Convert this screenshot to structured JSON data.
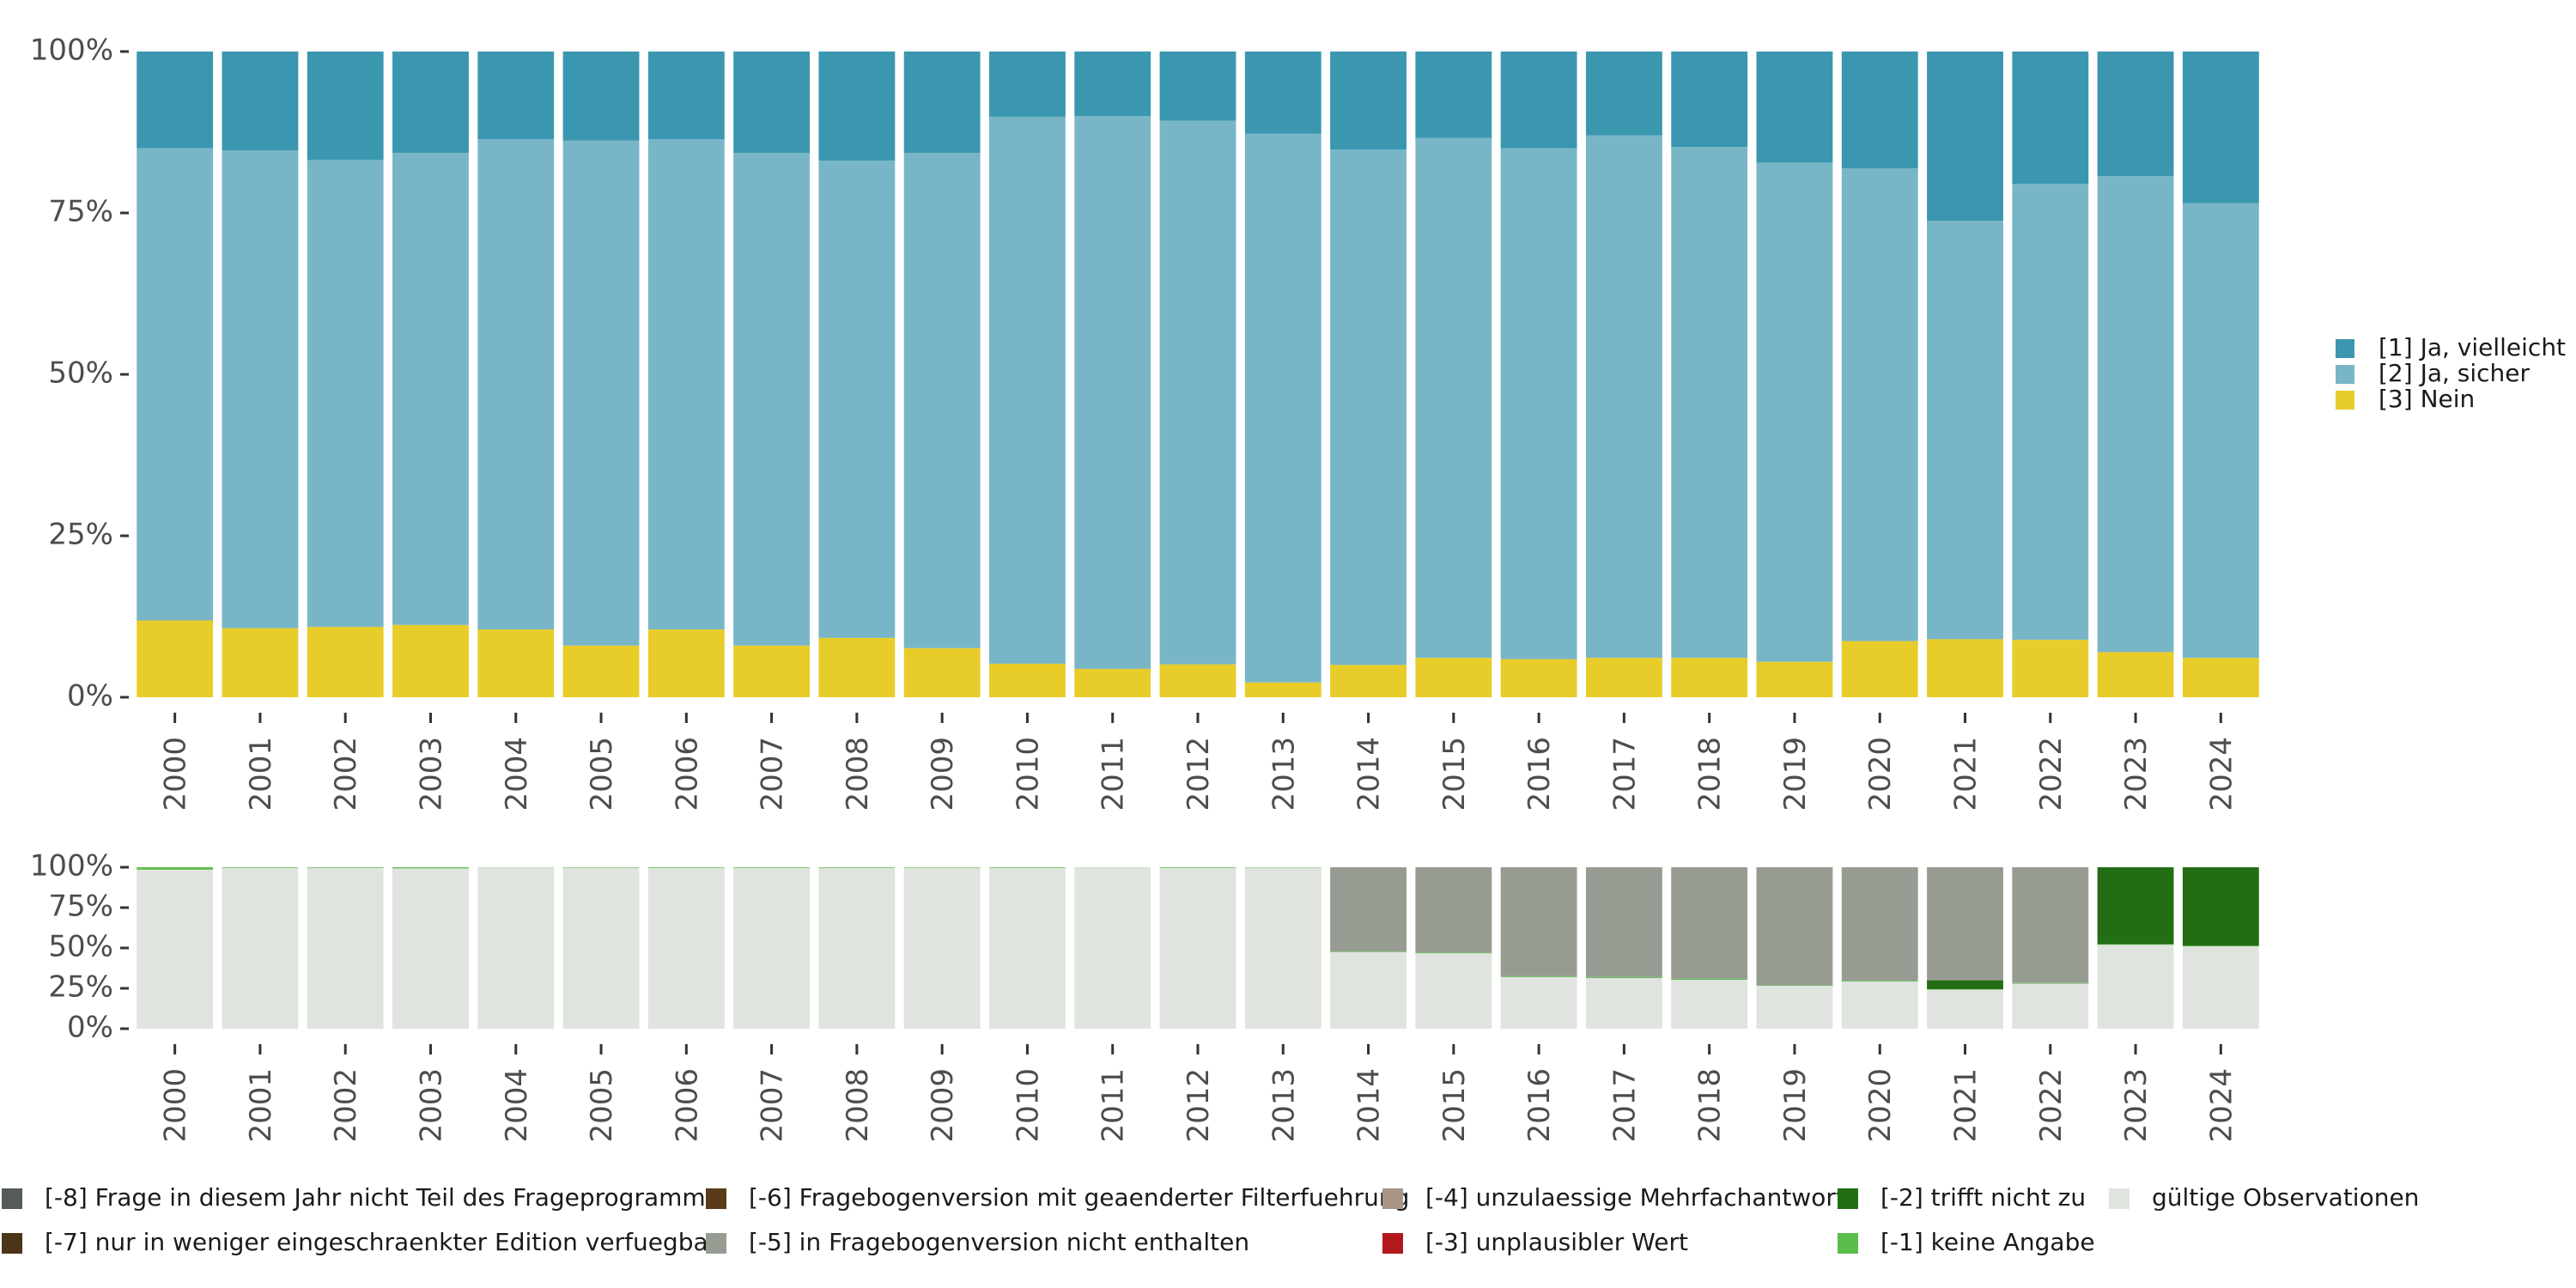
{
  "chart_data": [
    {
      "type": "bar",
      "stacked": true,
      "title": "",
      "xlabel": "",
      "ylabel": "",
      "ylim": [
        0,
        100
      ],
      "yticks": [
        "0%",
        "25%",
        "50%",
        "75%",
        "100%"
      ],
      "categories": [
        "2000",
        "2001",
        "2002",
        "2003",
        "2004",
        "2005",
        "2006",
        "2007",
        "2008",
        "2009",
        "2010",
        "2011",
        "2012",
        "2013",
        "2014",
        "2015",
        "2016",
        "2017",
        "2018",
        "2019",
        "2020",
        "2021",
        "2022",
        "2023",
        "2024"
      ],
      "legend_position": "right",
      "series": [
        {
          "name": "[3] Nein",
          "color": "#e8cc2a",
          "values": [
            11.9,
            10.7,
            10.9,
            11.2,
            10.5,
            8.0,
            10.5,
            8.0,
            9.2,
            7.6,
            5.2,
            4.4,
            5.1,
            2.3,
            5.0,
            6.1,
            5.9,
            6.1,
            6.1,
            5.5,
            8.7,
            9.0,
            8.9,
            7.0,
            6.1
          ]
        },
        {
          "name": "[2] Ja, sicher",
          "color": "#78b6c7",
          "values": [
            73.1,
            74.0,
            72.3,
            73.1,
            75.9,
            78.2,
            75.9,
            76.3,
            73.9,
            76.7,
            84.7,
            85.6,
            84.2,
            85.0,
            79.8,
            80.5,
            79.1,
            80.9,
            79.1,
            77.3,
            73.2,
            64.8,
            70.6,
            73.7,
            70.4
          ]
        },
        {
          "name": "[1] Ja, vielleicht",
          "color": "#3b97b0",
          "values": [
            15.0,
            15.3,
            16.8,
            15.7,
            13.6,
            13.8,
            13.6,
            15.7,
            16.9,
            15.7,
            10.1,
            10.0,
            10.7,
            12.7,
            15.2,
            13.4,
            15.0,
            13.0,
            14.8,
            17.2,
            18.1,
            26.2,
            20.5,
            19.3,
            23.5
          ]
        }
      ]
    },
    {
      "type": "bar",
      "stacked": true,
      "title": "",
      "xlabel": "",
      "ylabel": "",
      "ylim": [
        0,
        100
      ],
      "yticks": [
        "0%",
        "25%",
        "50%",
        "75%",
        "100%"
      ],
      "categories": [
        "2000",
        "2001",
        "2002",
        "2003",
        "2004",
        "2005",
        "2006",
        "2007",
        "2008",
        "2009",
        "2010",
        "2011",
        "2012",
        "2013",
        "2014",
        "2015",
        "2016",
        "2017",
        "2018",
        "2019",
        "2020",
        "2021",
        "2022",
        "2023",
        "2024"
      ],
      "legend_position": "bottom",
      "series": [
        {
          "name": "gültige Observationen",
          "color": "#e0e4df",
          "values": [
            98.5,
            99.6,
            99.6,
            99.3,
            99.9,
            99.7,
            99.6,
            99.6,
            99.6,
            99.7,
            99.6,
            99.9,
            99.6,
            99.8,
            47.5,
            46.7,
            32.0,
            31.4,
            30.3,
            26.6,
            29.2,
            24.2,
            27.9,
            52.0,
            51.0
          ]
        },
        {
          "name": "[-1] keine Angabe",
          "color": "#5bbd4b",
          "values": [
            1.5,
            0.4,
            0.4,
            0.7,
            0.1,
            0.3,
            0.4,
            0.4,
            0.4,
            0.3,
            0.4,
            0.1,
            0.4,
            0.2,
            0.4,
            0.5,
            0.5,
            0.6,
            0.6,
            0.3,
            0.5,
            0.3,
            0.4,
            0.4,
            0.4
          ]
        },
        {
          "name": "[-2] trifft nicht zu",
          "color": "#236e14",
          "values": [
            0,
            0,
            0,
            0,
            0,
            0,
            0,
            0,
            0,
            0,
            0,
            0,
            0,
            0,
            0,
            0,
            0,
            0,
            0,
            0,
            0,
            5.5,
            0,
            47.6,
            48.6
          ]
        },
        {
          "name": "[-3] unplausibler Wert",
          "color": "#b3191c",
          "values": [
            0,
            0,
            0,
            0,
            0,
            0,
            0,
            0,
            0,
            0,
            0,
            0,
            0,
            0,
            0,
            0,
            0,
            0,
            0,
            0,
            0,
            0,
            0,
            0,
            0
          ]
        },
        {
          "name": "[-4] unzulaessige Mehrfachantwort",
          "color": "#a89585",
          "values": [
            0,
            0,
            0,
            0,
            0,
            0,
            0,
            0,
            0,
            0,
            0,
            0,
            0,
            0,
            0,
            0,
            0,
            0,
            0,
            0,
            0,
            0,
            0,
            0,
            0
          ]
        },
        {
          "name": "[-5] in Fragebogenversion nicht enthalten",
          "color": "#979c92",
          "values": [
            0,
            0,
            0,
            0,
            0,
            0,
            0,
            0,
            0,
            0,
            0,
            0,
            0,
            0,
            52.1,
            52.8,
            67.5,
            68.0,
            69.1,
            73.1,
            70.3,
            70.0,
            71.7,
            0,
            0
          ]
        },
        {
          "name": "[-6] Fragebogenversion mit geaenderter Filterfuehrung",
          "color": "#5b3a1a",
          "values": [
            0,
            0,
            0,
            0,
            0,
            0,
            0,
            0,
            0,
            0,
            0,
            0,
            0,
            0,
            0,
            0,
            0,
            0,
            0,
            0,
            0,
            0,
            0,
            0,
            0
          ]
        },
        {
          "name": "[-7] nur in weniger eingeschraenkter Edition verfuegbar",
          "color": "#4a3518",
          "values": [
            0,
            0,
            0,
            0,
            0,
            0,
            0,
            0,
            0,
            0,
            0,
            0,
            0,
            0,
            0,
            0,
            0,
            0,
            0,
            0,
            0,
            0,
            0,
            0,
            0
          ]
        },
        {
          "name": "[-8] Frage in diesem Jahr nicht Teil des Frageprogramms",
          "color": "#555b57",
          "values": [
            0,
            0,
            0,
            0,
            0,
            0,
            0,
            0,
            0,
            0,
            0,
            0,
            0,
            0,
            0,
            0,
            0,
            0,
            0,
            0,
            0,
            0,
            0,
            0,
            0
          ]
        }
      ]
    }
  ],
  "legend_right": [
    {
      "label": "[1] Ja, vielleicht",
      "color": "#3b97b0"
    },
    {
      "label": "[2] Ja, sicher",
      "color": "#78b6c7"
    },
    {
      "label": "[3] Nein",
      "color": "#e8cc2a"
    }
  ],
  "legend_bottom": [
    {
      "label": "[-8] Frage in diesem Jahr nicht Teil des Frageprogramms",
      "color": "#555b57"
    },
    {
      "label": "[-7] nur in weniger eingeschraenkter Edition verfuegbar",
      "color": "#4a3518"
    },
    {
      "label": "[-6] Fragebogenversion mit geaenderter Filterfuehrung",
      "color": "#5b3a1a"
    },
    {
      "label": "[-5] in Fragebogenversion nicht enthalten",
      "color": "#979c92"
    },
    {
      "label": "[-4] unzulaessige Mehrfachantwort",
      "color": "#a89585"
    },
    {
      "label": "[-3] unplausibler Wert",
      "color": "#b3191c"
    },
    {
      "label": "[-2] trifft nicht zu",
      "color": "#236e14"
    },
    {
      "label": "[-1] keine Angabe",
      "color": "#5bbd4b"
    },
    {
      "label": "gültige Observationen",
      "color": "#e0e4df"
    }
  ]
}
